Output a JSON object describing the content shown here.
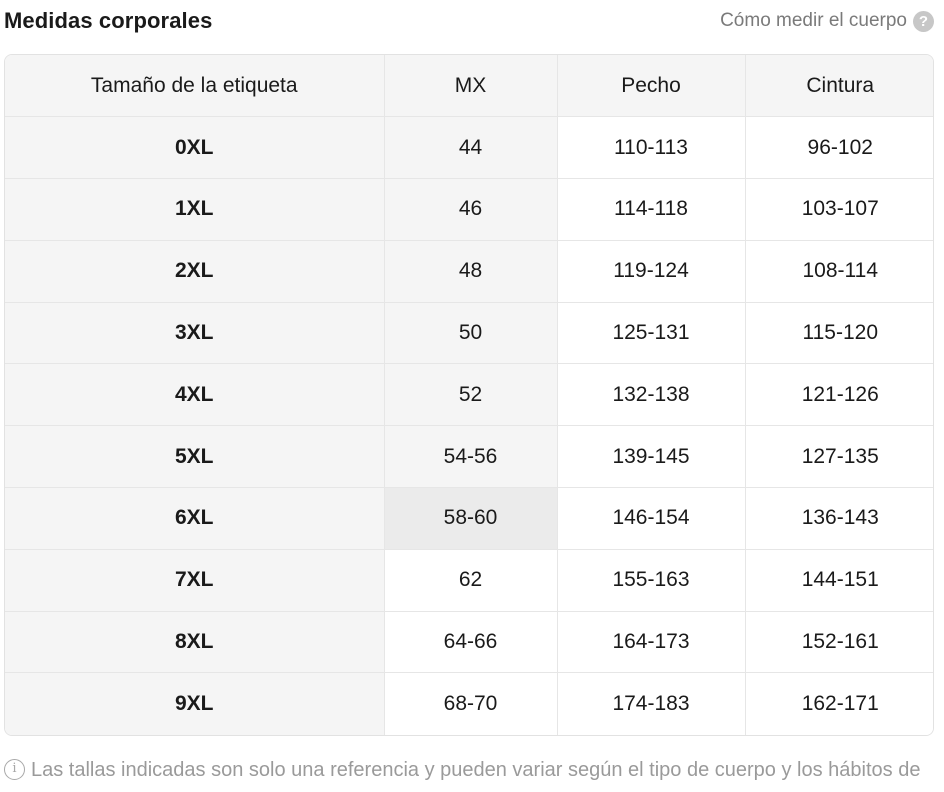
{
  "header": {
    "title": "Medidas corporales",
    "how_to_measure": "Cómo medir el cuerpo",
    "help_icon": "help-circle-icon"
  },
  "table": {
    "columns": [
      "Tamaño de la etiqueta",
      "MX",
      "Pecho",
      "Cintura"
    ],
    "rows": [
      [
        "0XL",
        "44",
        "110-113",
        "96-102"
      ],
      [
        "1XL",
        "46",
        "114-118",
        "103-107"
      ],
      [
        "2XL",
        "48",
        "119-124",
        "108-114"
      ],
      [
        "3XL",
        "50",
        "125-131",
        "115-120"
      ],
      [
        "4XL",
        "52",
        "132-138",
        "121-126"
      ],
      [
        "5XL",
        "54-56",
        "139-145",
        "127-135"
      ],
      [
        "6XL",
        "58-60",
        "146-154",
        "136-143"
      ],
      [
        "7XL",
        "62",
        "155-163",
        "144-151"
      ],
      [
        "8XL",
        "64-66",
        "164-173",
        "152-161"
      ],
      [
        "9XL",
        "68-70",
        "174-183",
        "162-171"
      ]
    ],
    "highlighted_row": 6
  },
  "footnote": {
    "icon": "info-circle-icon",
    "text": "Las tallas indicadas son solo una referencia y pueden variar según el tipo de cuerpo y los hábitos de uso."
  },
  "colors": {
    "header_bg": "#f5f5f5",
    "selected_bg": "#ebebeb",
    "muted_text": "#7a7a7a"
  }
}
